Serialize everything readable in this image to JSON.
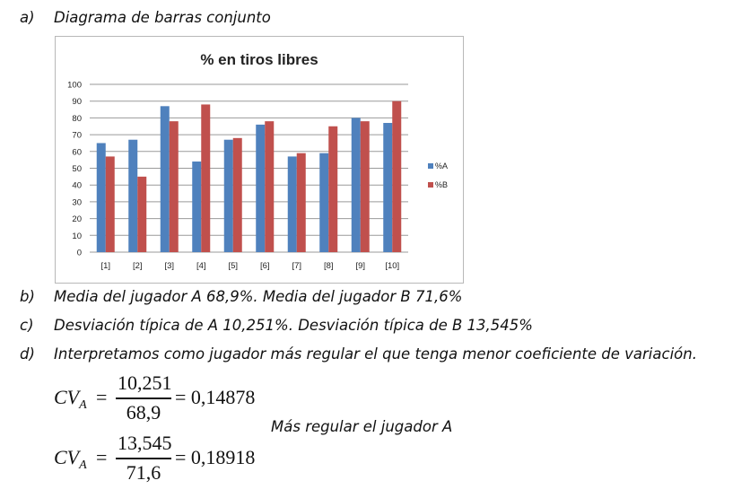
{
  "items": {
    "a": {
      "label": "a)",
      "text": "Diagrama de barras conjunto"
    },
    "b": {
      "label": "b)",
      "text": "Media del jugador A 68,9%.   Media del jugador B 71,6%"
    },
    "c": {
      "label": "c)",
      "text": "Desviación típica de A 10,251%.  Desviación típica de B 13,545%"
    },
    "d": {
      "label": "d)",
      "text": "Interpretamos como jugador más regular el que tenga menor coeficiente de variación."
    }
  },
  "formulas": [
    {
      "lhs": "CV",
      "sub": "A",
      "numerator": "10,251",
      "denominator": "68,9",
      "eq": "=",
      "result": "= 0,14878"
    },
    {
      "lhs": "CV",
      "sub": "A",
      "numerator": "13,545",
      "denominator": "71,6",
      "eq": "=",
      "result": "= 0,18918"
    }
  ],
  "conclusion": "Más regular el jugador A",
  "chart_data": {
    "type": "bar",
    "title": "% en tiros libres",
    "categories": [
      "[1]",
      "[2]",
      "[3]",
      "[4]",
      "[5]",
      "[6]",
      "[7]",
      "[8]",
      "[9]",
      "[10]"
    ],
    "series": [
      {
        "name": "%A",
        "color": "#4f81bd",
        "values": [
          65,
          67,
          87,
          54,
          67,
          76,
          57,
          59,
          80,
          77
        ]
      },
      {
        "name": "%B",
        "color": "#c0504d",
        "values": [
          57,
          45,
          78,
          88,
          68,
          78,
          59,
          75,
          78,
          90
        ]
      }
    ],
    "ylim": [
      0,
      100
    ],
    "yticks": [
      0,
      10,
      20,
      30,
      40,
      50,
      60,
      70,
      80,
      90,
      100
    ],
    "grid": true,
    "legend": "right"
  }
}
